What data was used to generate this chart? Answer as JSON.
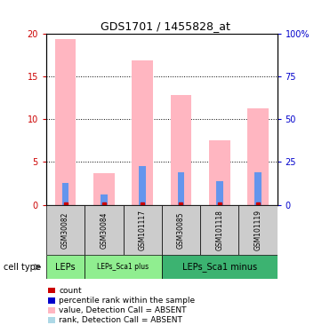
{
  "title": "GDS1701 / 1455828_at",
  "samples": [
    "GSM30082",
    "GSM30084",
    "GSM101117",
    "GSM30085",
    "GSM101118",
    "GSM101119"
  ],
  "pink_bar_heights": [
    19.3,
    3.7,
    16.8,
    12.8,
    7.5,
    11.3
  ],
  "blue_bar_heights": [
    2.5,
    1.2,
    4.5,
    3.8,
    2.8,
    3.8
  ],
  "ylim_left": [
    0,
    20
  ],
  "ylim_right": [
    0,
    100
  ],
  "yticks_left": [
    0,
    5,
    10,
    15,
    20
  ],
  "yticks_right": [
    0,
    25,
    50,
    75,
    100
  ],
  "yticklabels_right": [
    "0",
    "25",
    "50",
    "75",
    "100%"
  ],
  "pink_color": "#FFB6C1",
  "blue_color": "#6495ED",
  "red_color": "#CC0000",
  "light_blue_color": "#ADD8E6",
  "tick_color_left": "#CC0000",
  "tick_color_right": "#0000CC",
  "sample_box_color": "#CCCCCC",
  "group1_color": "#90EE90",
  "group2_color": "#3CB371",
  "groups": [
    {
      "label": "LEPs",
      "start": 0,
      "end": 1
    },
    {
      "label": "LEPs_Sca1 plus",
      "start": 1,
      "end": 3
    },
    {
      "label": "LEPs_Sca1 minus",
      "start": 3,
      "end": 6
    }
  ],
  "legend_items": [
    {
      "color": "#CC0000",
      "label": "count"
    },
    {
      "color": "#0000CC",
      "label": "percentile rank within the sample"
    },
    {
      "color": "#FFB6C1",
      "label": "value, Detection Call = ABSENT"
    },
    {
      "color": "#ADD8E6",
      "label": "rank, Detection Call = ABSENT"
    }
  ]
}
